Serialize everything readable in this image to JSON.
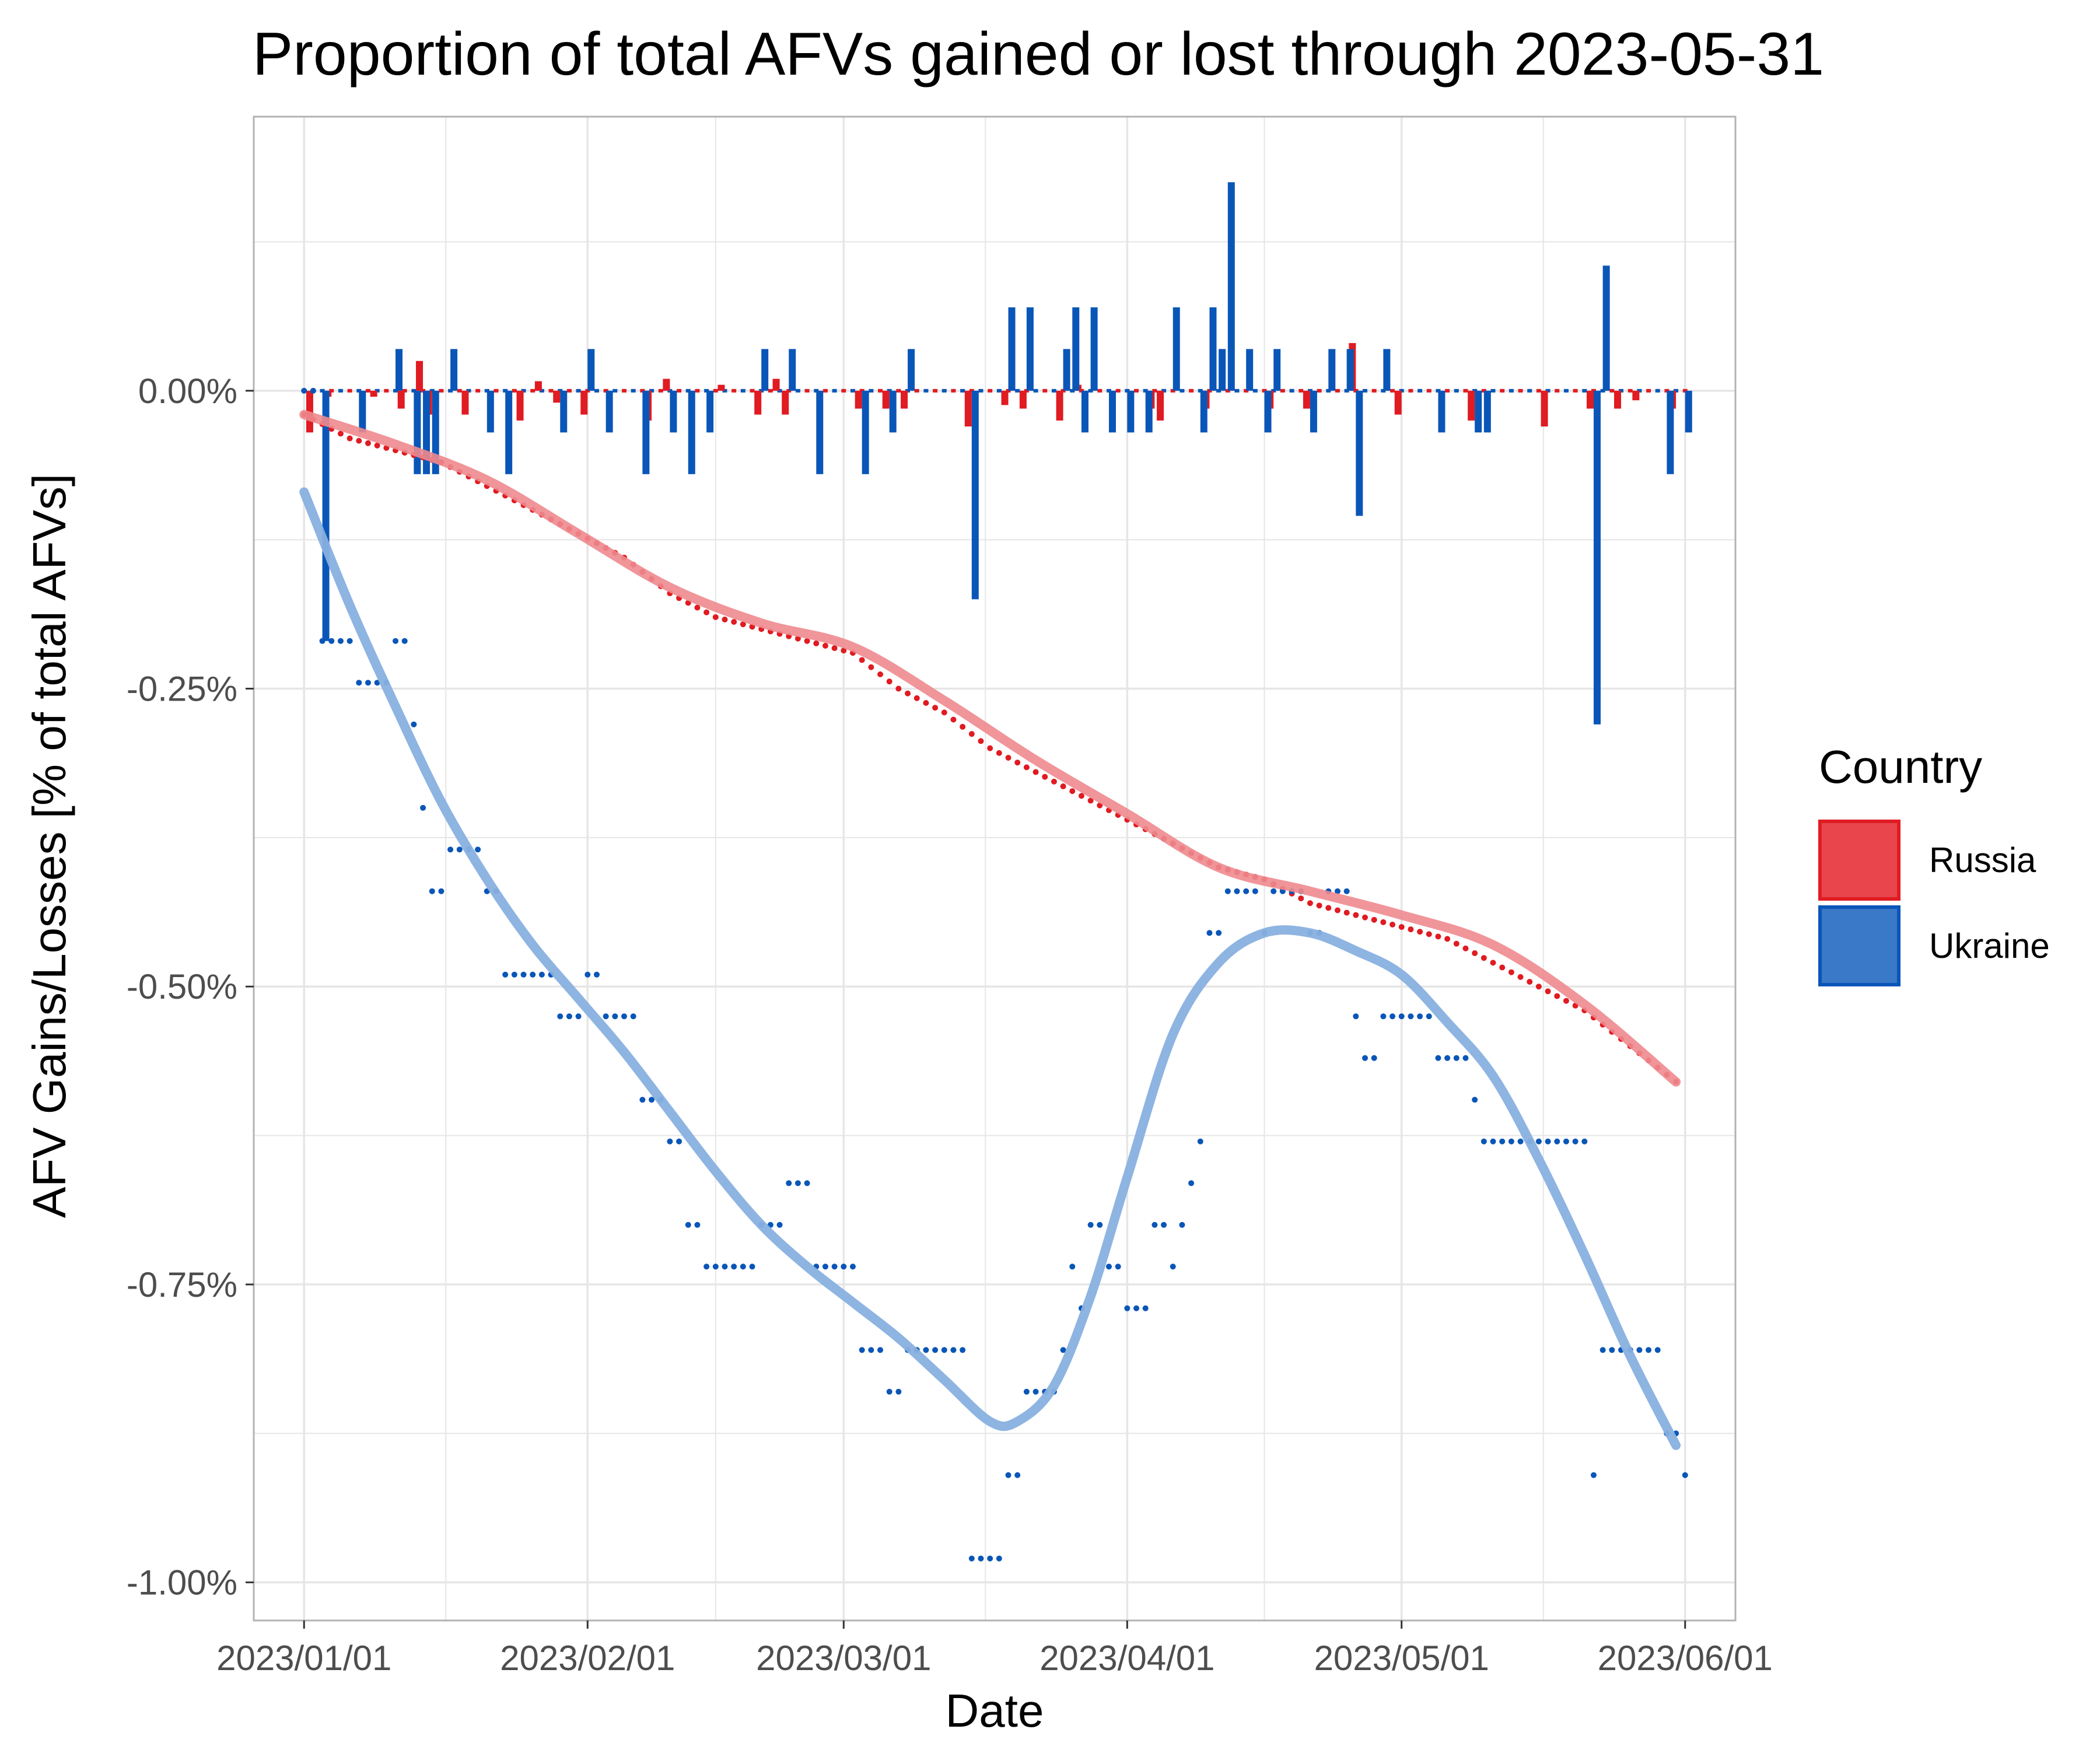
{
  "chart_data": {
    "type": "bar+scatter+smooth-line",
    "title": "Proportion of total AFVs gained or lost through 2023-05-31",
    "xlabel": "Date",
    "ylabel": "AFV Gains/Losses [% of total AFVs]",
    "x_ticks": [
      "2023/01/01",
      "2023/02/01",
      "2023/03/01",
      "2023/04/01",
      "2023/05/01",
      "2023/06/01"
    ],
    "y_ticks": [
      "0.00%",
      "-0.25%",
      "-0.50%",
      "-0.75%",
      "-1.00%"
    ],
    "y_tick_values": [
      0.0,
      -0.25,
      -0.5,
      -0.75,
      -1.0
    ],
    "xlim_days": [
      -5.5,
      156.5
    ],
    "ylim": [
      -1.032,
      0.23
    ],
    "grid": true,
    "legend": {
      "title": "Country",
      "position": "right",
      "entries": [
        {
          "label": "Russia",
          "fill": "#e8464c",
          "stroke": "#e01b22"
        },
        {
          "label": "Ukraine",
          "fill": "#3a78c8",
          "stroke": "#0a56b8"
        }
      ]
    },
    "colors": {
      "russia": "#e01b22",
      "ukraine": "#0a56b8",
      "russia_smooth": "#ee8a8e",
      "ukraine_smooth": "#88b0df",
      "grid": "#e6e6e6",
      "panel_border": "#b3b3b3"
    },
    "series": [
      {
        "name": "Russia",
        "daily_bars": [
          {
            "day": 1,
            "value": -0.035
          },
          {
            "day": 3,
            "value": -0.005
          },
          {
            "day": 8,
            "value": -0.005
          },
          {
            "day": 11,
            "value": -0.015
          },
          {
            "day": 13,
            "value": 0.025
          },
          {
            "day": 14,
            "value": -0.02
          },
          {
            "day": 18,
            "value": -0.02
          },
          {
            "day": 24,
            "value": -0.025
          },
          {
            "day": 26,
            "value": 0.008
          },
          {
            "day": 28,
            "value": -0.01
          },
          {
            "day": 31,
            "value": -0.02
          },
          {
            "day": 38,
            "value": -0.025
          },
          {
            "day": 40,
            "value": 0.01
          },
          {
            "day": 46,
            "value": 0.005
          },
          {
            "day": 50,
            "value": -0.02
          },
          {
            "day": 52,
            "value": 0.01
          },
          {
            "day": 53,
            "value": -0.02
          },
          {
            "day": 61,
            "value": -0.015
          },
          {
            "day": 64,
            "value": -0.015
          },
          {
            "day": 66,
            "value": -0.015
          },
          {
            "day": 73,
            "value": -0.03
          },
          {
            "day": 77,
            "value": -0.012
          },
          {
            "day": 79,
            "value": -0.015
          },
          {
            "day": 83,
            "value": -0.025
          },
          {
            "day": 85,
            "value": 0.005
          },
          {
            "day": 93,
            "value": -0.015
          },
          {
            "day": 94,
            "value": -0.025
          },
          {
            "day": 99,
            "value": -0.015
          },
          {
            "day": 106,
            "value": -0.015
          },
          {
            "day": 110,
            "value": -0.015
          },
          {
            "day": 115,
            "value": 0.04
          },
          {
            "day": 120,
            "value": -0.02
          },
          {
            "day": 128,
            "value": -0.025
          },
          {
            "day": 136,
            "value": -0.03
          },
          {
            "day": 141,
            "value": -0.015
          },
          {
            "day": 144,
            "value": -0.015
          },
          {
            "day": 146,
            "value": -0.008
          },
          {
            "day": 150,
            "value": -0.015
          }
        ],
        "cumulative": [
          {
            "day": 0,
            "value": -0.02
          },
          {
            "day": 5,
            "value": -0.04
          },
          {
            "day": 10,
            "value": -0.05
          },
          {
            "day": 15,
            "value": -0.06
          },
          {
            "day": 20,
            "value": -0.08
          },
          {
            "day": 25,
            "value": -0.1
          },
          {
            "day": 30,
            "value": -0.12
          },
          {
            "day": 35,
            "value": -0.14
          },
          {
            "day": 40,
            "value": -0.17
          },
          {
            "day": 45,
            "value": -0.19
          },
          {
            "day": 50,
            "value": -0.2
          },
          {
            "day": 55,
            "value": -0.21
          },
          {
            "day": 60,
            "value": -0.22
          },
          {
            "day": 65,
            "value": -0.25
          },
          {
            "day": 70,
            "value": -0.27
          },
          {
            "day": 75,
            "value": -0.3
          },
          {
            "day": 80,
            "value": -0.32
          },
          {
            "day": 85,
            "value": -0.34
          },
          {
            "day": 90,
            "value": -0.36
          },
          {
            "day": 95,
            "value": -0.38
          },
          {
            "day": 100,
            "value": -0.4
          },
          {
            "day": 105,
            "value": -0.41
          },
          {
            "day": 110,
            "value": -0.43
          },
          {
            "day": 115,
            "value": -0.44
          },
          {
            "day": 120,
            "value": -0.45
          },
          {
            "day": 125,
            "value": -0.46
          },
          {
            "day": 130,
            "value": -0.48
          },
          {
            "day": 135,
            "value": -0.5
          },
          {
            "day": 140,
            "value": -0.52
          },
          {
            "day": 145,
            "value": -0.55
          },
          {
            "day": 150,
            "value": -0.58
          }
        ]
      },
      {
        "name": "Ukraine",
        "daily_bars": [
          {
            "day": 2,
            "value": -0.21
          },
          {
            "day": 6,
            "value": -0.035
          },
          {
            "day": 10,
            "value": 0.035
          },
          {
            "day": 12,
            "value": -0.07
          },
          {
            "day": 13,
            "value": -0.07
          },
          {
            "day": 14,
            "value": -0.07
          },
          {
            "day": 16,
            "value": 0.035
          },
          {
            "day": 20,
            "value": -0.035
          },
          {
            "day": 22,
            "value": -0.07
          },
          {
            "day": 28,
            "value": -0.035
          },
          {
            "day": 31,
            "value": 0.035
          },
          {
            "day": 33,
            "value": -0.035
          },
          {
            "day": 37,
            "value": -0.07
          },
          {
            "day": 40,
            "value": -0.035
          },
          {
            "day": 42,
            "value": -0.07
          },
          {
            "day": 44,
            "value": -0.035
          },
          {
            "day": 50,
            "value": 0.035
          },
          {
            "day": 53,
            "value": 0.035
          },
          {
            "day": 56,
            "value": -0.07
          },
          {
            "day": 61,
            "value": -0.07
          },
          {
            "day": 64,
            "value": -0.035
          },
          {
            "day": 66,
            "value": 0.035
          },
          {
            "day": 73,
            "value": -0.175
          },
          {
            "day": 77,
            "value": 0.07
          },
          {
            "day": 79,
            "value": 0.07
          },
          {
            "day": 83,
            "value": 0.035
          },
          {
            "day": 84,
            "value": 0.07
          },
          {
            "day": 85,
            "value": -0.035
          },
          {
            "day": 86,
            "value": 0.07
          },
          {
            "day": 88,
            "value": -0.035
          },
          {
            "day": 90,
            "value": -0.035
          },
          {
            "day": 92,
            "value": -0.035
          },
          {
            "day": 93,
            "value": 0.0
          },
          {
            "day": 95,
            "value": 0.07
          },
          {
            "day": 98,
            "value": -0.035
          },
          {
            "day": 99,
            "value": 0.07
          },
          {
            "day": 100,
            "value": 0.035
          },
          {
            "day": 101,
            "value": 0.175
          },
          {
            "day": 103,
            "value": 0.035
          },
          {
            "day": 105,
            "value": -0.035
          },
          {
            "day": 106,
            "value": 0.035
          },
          {
            "day": 110,
            "value": -0.035
          },
          {
            "day": 112,
            "value": 0.035
          },
          {
            "day": 114,
            "value": 0.035
          },
          {
            "day": 115,
            "value": -0.105
          },
          {
            "day": 118,
            "value": 0.035
          },
          {
            "day": 124,
            "value": -0.035
          },
          {
            "day": 128,
            "value": -0.035
          },
          {
            "day": 129,
            "value": -0.035
          },
          {
            "day": 141,
            "value": -0.28
          },
          {
            "day": 142,
            "value": 0.105
          },
          {
            "day": 149,
            "value": -0.07
          },
          {
            "day": 151,
            "value": -0.035
          }
        ],
        "cumulative": [
          {
            "day": 0,
            "value": 0.0
          },
          {
            "day": 2,
            "value": -0.21
          },
          {
            "day": 6,
            "value": -0.245
          },
          {
            "day": 10,
            "value": -0.21
          },
          {
            "day": 12,
            "value": -0.28
          },
          {
            "day": 13,
            "value": -0.35
          },
          {
            "day": 14,
            "value": -0.42
          },
          {
            "day": 16,
            "value": -0.385
          },
          {
            "day": 20,
            "value": -0.42
          },
          {
            "day": 22,
            "value": -0.49
          },
          {
            "day": 28,
            "value": -0.525
          },
          {
            "day": 31,
            "value": -0.49
          },
          {
            "day": 33,
            "value": -0.525
          },
          {
            "day": 37,
            "value": -0.595
          },
          {
            "day": 40,
            "value": -0.63
          },
          {
            "day": 42,
            "value": -0.7
          },
          {
            "day": 44,
            "value": -0.735
          },
          {
            "day": 50,
            "value": -0.7
          },
          {
            "day": 53,
            "value": -0.665
          },
          {
            "day": 56,
            "value": -0.735
          },
          {
            "day": 61,
            "value": -0.805
          },
          {
            "day": 64,
            "value": -0.84
          },
          {
            "day": 66,
            "value": -0.805
          },
          {
            "day": 73,
            "value": -0.98
          },
          {
            "day": 77,
            "value": -0.91
          },
          {
            "day": 79,
            "value": -0.84
          },
          {
            "day": 83,
            "value": -0.805
          },
          {
            "day": 84,
            "value": -0.735
          },
          {
            "day": 85,
            "value": -0.77
          },
          {
            "day": 86,
            "value": -0.7
          },
          {
            "day": 88,
            "value": -0.735
          },
          {
            "day": 90,
            "value": -0.77
          },
          {
            "day": 93,
            "value": -0.7
          },
          {
            "day": 95,
            "value": -0.735
          },
          {
            "day": 96,
            "value": -0.7
          },
          {
            "day": 97,
            "value": -0.665
          },
          {
            "day": 98,
            "value": -0.63
          },
          {
            "day": 99,
            "value": -0.455
          },
          {
            "day": 101,
            "value": -0.42
          },
          {
            "day": 105,
            "value": -0.455
          },
          {
            "day": 106,
            "value": -0.42
          },
          {
            "day": 110,
            "value": -0.455
          },
          {
            "day": 112,
            "value": -0.42
          },
          {
            "day": 115,
            "value": -0.525
          },
          {
            "day": 116,
            "value": -0.56
          },
          {
            "day": 118,
            "value": -0.525
          },
          {
            "day": 124,
            "value": -0.56
          },
          {
            "day": 128,
            "value": -0.595
          },
          {
            "day": 129,
            "value": -0.63
          },
          {
            "day": 141,
            "value": -0.91
          },
          {
            "day": 142,
            "value": -0.805
          },
          {
            "day": 149,
            "value": -0.875
          },
          {
            "day": 151,
            "value": -0.91
          }
        ]
      }
    ],
    "smooth": {
      "Russia": [
        {
          "day": 0,
          "value": -0.02
        },
        {
          "day": 10,
          "value": -0.045
        },
        {
          "day": 20,
          "value": -0.075
        },
        {
          "day": 30,
          "value": -0.12
        },
        {
          "day": 40,
          "value": -0.165
        },
        {
          "day": 50,
          "value": -0.195
        },
        {
          "day": 60,
          "value": -0.215
        },
        {
          "day": 70,
          "value": -0.26
        },
        {
          "day": 80,
          "value": -0.31
        },
        {
          "day": 90,
          "value": -0.355
        },
        {
          "day": 100,
          "value": -0.4
        },
        {
          "day": 110,
          "value": -0.42
        },
        {
          "day": 120,
          "value": -0.44
        },
        {
          "day": 130,
          "value": -0.465
        },
        {
          "day": 140,
          "value": -0.515
        },
        {
          "day": 150,
          "value": -0.58
        }
      ],
      "Ukraine": [
        {
          "day": 0,
          "value": -0.085
        },
        {
          "day": 5,
          "value": -0.18
        },
        {
          "day": 10,
          "value": -0.265
        },
        {
          "day": 15,
          "value": -0.345
        },
        {
          "day": 20,
          "value": -0.41
        },
        {
          "day": 25,
          "value": -0.465
        },
        {
          "day": 30,
          "value": -0.51
        },
        {
          "day": 35,
          "value": -0.555
        },
        {
          "day": 40,
          "value": -0.605
        },
        {
          "day": 45,
          "value": -0.655
        },
        {
          "day": 50,
          "value": -0.7
        },
        {
          "day": 55,
          "value": -0.735
        },
        {
          "day": 60,
          "value": -0.765
        },
        {
          "day": 65,
          "value": -0.795
        },
        {
          "day": 70,
          "value": -0.83
        },
        {
          "day": 75,
          "value": -0.865
        },
        {
          "day": 78,
          "value": -0.865
        },
        {
          "day": 82,
          "value": -0.835
        },
        {
          "day": 86,
          "value": -0.76
        },
        {
          "day": 90,
          "value": -0.66
        },
        {
          "day": 95,
          "value": -0.54
        },
        {
          "day": 100,
          "value": -0.48
        },
        {
          "day": 105,
          "value": -0.455
        },
        {
          "day": 110,
          "value": -0.455
        },
        {
          "day": 115,
          "value": -0.47
        },
        {
          "day": 120,
          "value": -0.49
        },
        {
          "day": 125,
          "value": -0.53
        },
        {
          "day": 130,
          "value": -0.575
        },
        {
          "day": 135,
          "value": -0.645
        },
        {
          "day": 140,
          "value": -0.725
        },
        {
          "day": 145,
          "value": -0.81
        },
        {
          "day": 150,
          "value": -0.885
        }
      ]
    }
  }
}
